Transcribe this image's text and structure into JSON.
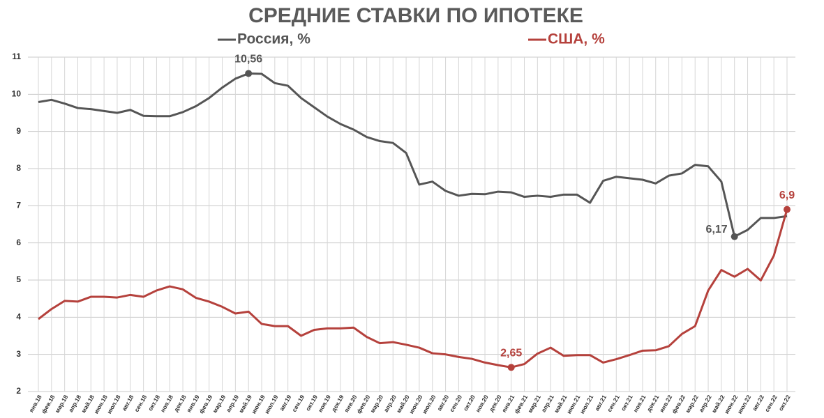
{
  "chart_data": {
    "type": "line",
    "title": "СРЕДНИЕ СТАВКИ ПО ИПОТЕКЕ",
    "categories": [
      "янв.18",
      "фев.18",
      "мар.18",
      "апр.18",
      "май.18",
      "июн.18",
      "июл.18",
      "авг.18",
      "сен.18",
      "окт.18",
      "ноя.18",
      "дек.18",
      "янв.19",
      "фев.19",
      "мар.19",
      "апр.19",
      "май.19",
      "июн.19",
      "июл.19",
      "авг.19",
      "сен.19",
      "окт.19",
      "ноя.19",
      "дек.19",
      "янв.20",
      "фев.20",
      "мар.20",
      "апр.20",
      "май.20",
      "июн.20",
      "июл.20",
      "авг.20",
      "сен.20",
      "окт.20",
      "ноя.20",
      "дек.20",
      "янв.21",
      "фев.21",
      "мар.21",
      "апр.21",
      "май.21",
      "июн.21",
      "июл.21",
      "авг.21",
      "сен.21",
      "окт.21",
      "ноя.21",
      "дек.21",
      "янв.22",
      "фев.22",
      "мар.22",
      "апр.22",
      "май.22",
      "июн.22",
      "июл.22",
      "авг.22",
      "сен.22",
      "окт.22"
    ],
    "series": [
      {
        "name": "Россия, %",
        "color": "#555555",
        "values": [
          9.79,
          9.85,
          9.75,
          9.63,
          9.6,
          9.55,
          9.5,
          9.58,
          9.42,
          9.41,
          9.41,
          9.52,
          9.68,
          9.9,
          10.18,
          10.42,
          10.56,
          10.55,
          10.3,
          10.23,
          9.9,
          9.65,
          9.4,
          9.2,
          9.05,
          8.85,
          8.74,
          8.69,
          8.42,
          7.57,
          7.65,
          7.4,
          7.27,
          7.32,
          7.31,
          7.38,
          7.36,
          7.24,
          7.27,
          7.24,
          7.3,
          7.3,
          7.08,
          7.67,
          7.78,
          7.74,
          7.7,
          7.6,
          7.81,
          7.87,
          8.1,
          8.06,
          7.65,
          6.17,
          6.35,
          6.67,
          6.67,
          6.72
        ],
        "value_labels": [
          null,
          null,
          null,
          null,
          null,
          null,
          null,
          null,
          null,
          null,
          null,
          null,
          null,
          null,
          null,
          null,
          "10,56",
          null,
          null,
          null,
          null,
          null,
          null,
          null,
          null,
          null,
          null,
          null,
          null,
          null,
          null,
          null,
          null,
          null,
          null,
          null,
          null,
          null,
          null,
          null,
          null,
          null,
          null,
          null,
          null,
          null,
          null,
          null,
          null,
          null,
          null,
          null,
          null,
          "6,17",
          null,
          null,
          null,
          null
        ]
      },
      {
        "name": "США, %",
        "color": "#b5413c",
        "values": [
          3.95,
          4.22,
          4.44,
          4.42,
          4.55,
          4.55,
          4.53,
          4.6,
          4.55,
          4.72,
          4.83,
          4.75,
          4.52,
          4.42,
          4.28,
          4.1,
          4.15,
          3.82,
          3.76,
          3.76,
          3.5,
          3.66,
          3.7,
          3.7,
          3.72,
          3.47,
          3.3,
          3.33,
          3.26,
          3.18,
          3.03,
          3.0,
          2.93,
          2.88,
          2.78,
          2.71,
          2.65,
          2.74,
          3.02,
          3.18,
          2.96,
          2.98,
          2.98,
          2.78,
          2.87,
          2.98,
          3.1,
          3.11,
          3.22,
          3.55,
          3.76,
          4.72,
          5.27,
          5.09,
          5.3,
          4.99,
          5.66,
          6.9
        ],
        "value_labels": [
          null,
          null,
          null,
          null,
          null,
          null,
          null,
          null,
          null,
          null,
          null,
          null,
          null,
          null,
          null,
          null,
          null,
          null,
          null,
          null,
          null,
          null,
          null,
          null,
          null,
          null,
          null,
          null,
          null,
          null,
          null,
          null,
          null,
          null,
          null,
          null,
          "2,65",
          null,
          null,
          null,
          null,
          null,
          null,
          null,
          null,
          null,
          null,
          null,
          null,
          null,
          null,
          null,
          null,
          null,
          null,
          null,
          null,
          "6,9"
        ]
      }
    ],
    "ylim": [
      2,
      11
    ],
    "yticks": [
      2,
      3,
      4,
      5,
      6,
      7,
      8,
      9,
      10,
      11
    ],
    "grid": true
  }
}
